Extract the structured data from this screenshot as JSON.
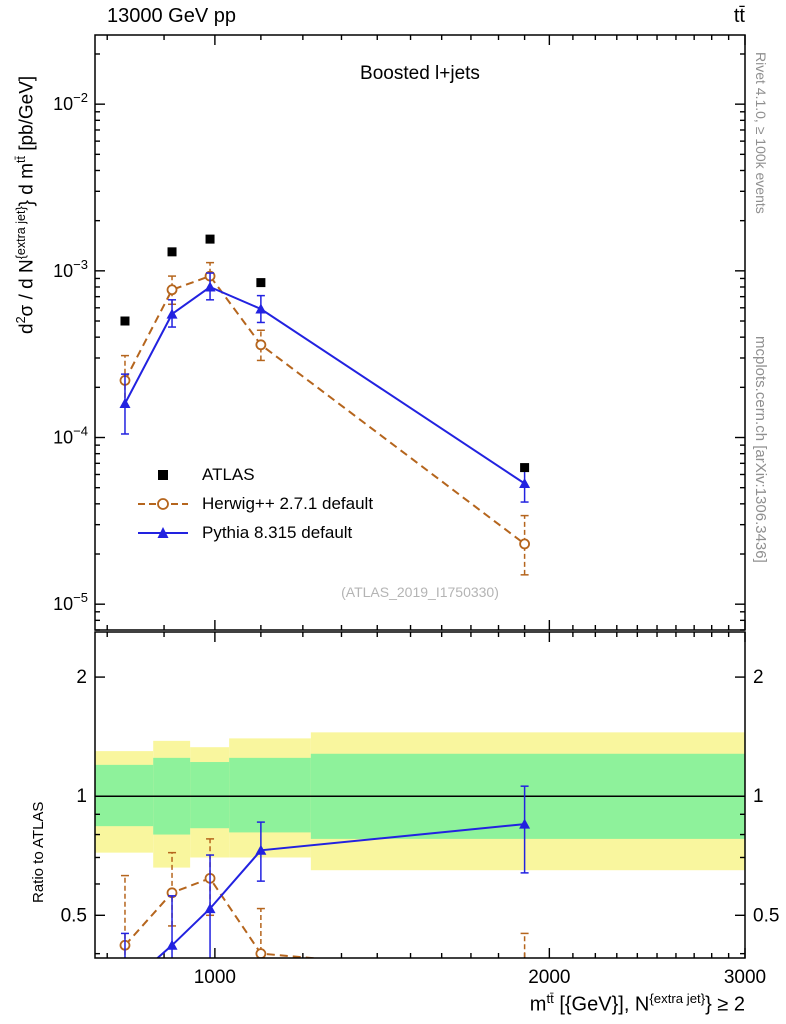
{
  "header": {
    "left_title": "13000 GeV pp",
    "right_title": "tt̄"
  },
  "main": {
    "title": "Boosted l+jets",
    "watermark": "(ATLAS_2019_I1750330)"
  },
  "side_notes": {
    "top_right": "Rivet 4.1.0, ≥ 100k events",
    "bottom_right": "mcplots.cern.ch [arXiv:1306.3436]"
  },
  "axes_labels": {
    "y_main": {
      "t1": "d",
      "sup1": "2",
      "t2": "σ / d N",
      "sup2": "{extra jet}",
      "t3": "} d m",
      "sup3": "tt̄",
      "t4": " [pb/GeV]"
    },
    "y_ratio": "Ratio to ATLAS",
    "x": {
      "t1": "m",
      "sup1": "tt̄",
      "t2": " [{GeV}], N",
      "sup2": "{extra jet}",
      "t3": "} ≥ 2"
    }
  },
  "chart_data": {
    "type": "line",
    "x_centers": [
      830,
      915,
      990,
      1100,
      1900
    ],
    "bin_edges": [
      780,
      880,
      950,
      1030,
      1220,
      3000
    ],
    "axes": {
      "x_range": [
        780,
        3000
      ],
      "x_scale": "log",
      "x_ticks": [
        1000,
        2000,
        3000
      ],
      "y_main_range": [
        7e-06,
        0.026
      ],
      "y_main_scale": "log",
      "y_main_tick_exponents": [
        -5,
        -4,
        -3,
        -2
      ],
      "y_ratio_range": [
        0.39,
        2.6
      ],
      "y_ratio_scale": "log",
      "y_ratio_ticks": [
        0.5,
        1,
        2
      ],
      "y_ratio_minor_ticks": [
        0.4,
        0.6,
        0.7,
        0.8,
        0.9
      ]
    },
    "series": [
      {
        "name": "ATLAS",
        "color": "#000000",
        "marker": "square",
        "line": "none",
        "y": [
          0.0005,
          0.0013,
          0.00155,
          0.00085,
          6.6e-05
        ]
      },
      {
        "name": "Herwig++ 2.7.1 default",
        "color": "#b5651d",
        "marker": "open-circle",
        "line": "dashed",
        "y": [
          0.00022,
          0.00077,
          0.00093,
          0.00036,
          2.3e-05
        ],
        "y_err": [
          [
            0.000155,
            0.00031
          ],
          [
            0.00063,
            0.00093
          ],
          [
            0.00077,
            0.00112
          ],
          [
            0.00029,
            0.00044
          ],
          [
            1.5e-05,
            3.4e-05
          ]
        ],
        "ratio": [
          0.42,
          0.57,
          0.62,
          0.4,
          0.35
        ],
        "ratio_err": [
          [
            0.33,
            0.63
          ],
          [
            0.47,
            0.72
          ],
          [
            0.5,
            0.78
          ],
          [
            0.32,
            0.52
          ],
          [
            0.27,
            0.45
          ]
        ]
      },
      {
        "name": "Pythia 8.315 default",
        "color": "#2222e0",
        "marker": "triangle",
        "line": "solid",
        "y": [
          0.00016,
          0.00055,
          0.0008,
          0.00059,
          5.3e-05
        ],
        "y_err": [
          [
            0.000105,
            0.00024
          ],
          [
            0.00046,
            0.00067
          ],
          [
            0.00067,
            0.00097
          ],
          [
            0.00049,
            0.00071
          ],
          [
            4.1e-05,
            6.7e-05
          ]
        ],
        "ratio": [
          0.33,
          0.42,
          0.52,
          0.73,
          0.85
        ],
        "ratio_err": [
          [
            0.25,
            0.45
          ],
          [
            0.28,
            0.56
          ],
          [
            0.34,
            0.71
          ],
          [
            0.61,
            0.86
          ],
          [
            0.64,
            1.06
          ]
        ]
      }
    ],
    "ratio_bands": {
      "yellow": [
        [
          0.72,
          1.3
        ],
        [
          0.66,
          1.38
        ],
        [
          0.7,
          1.33
        ],
        [
          0.7,
          1.4
        ],
        [
          0.65,
          1.45
        ]
      ],
      "green": [
        [
          0.84,
          1.2
        ],
        [
          0.8,
          1.25
        ],
        [
          0.83,
          1.22
        ],
        [
          0.81,
          1.25
        ],
        [
          0.78,
          1.28
        ]
      ]
    },
    "style": {
      "yellow_band": "#f9f69e",
      "green_band": "#8ef29b",
      "ref_line": "#000000",
      "watermark_gray": "#b4b4b4",
      "note_gray": "#8f8f8f"
    }
  }
}
